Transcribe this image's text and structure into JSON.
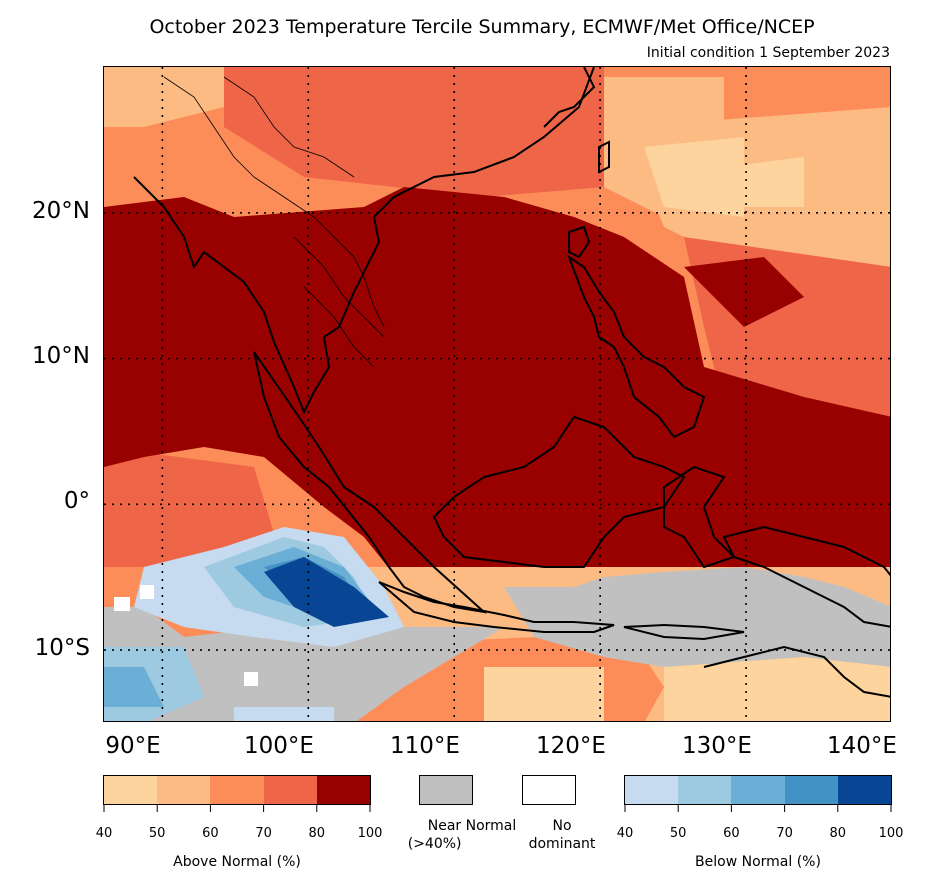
{
  "title": "October 2023 Temperature Tercile Summary, ECMWF/Met Office/NCEP",
  "subtitle": "Initial condition 1 September 2023",
  "map": {
    "lon_labels": [
      "90°E",
      "100°E",
      "110°E",
      "120°E",
      "130°E",
      "140°E"
    ],
    "lat_labels": [
      "20°N",
      "10°N",
      "0°",
      "10°S"
    ],
    "lon_range": [
      86,
      140
    ],
    "lat_range": [
      -15,
      30
    ],
    "gridlines": "dotted",
    "colors": {
      "above_40": "#fdd49e",
      "above_50": "#fdbb84",
      "above_60": "#fc8d59",
      "above_70": "#ef6548",
      "above_80": "#990000",
      "near_normal": "#c0c0c0",
      "no_dominant": "#ffffff",
      "below_40": "#c6dbef",
      "below_50": "#9ecae1",
      "below_60": "#6baed6",
      "below_70": "#4292c6",
      "below_80": "#084594",
      "coastline": "#000000"
    }
  },
  "legend": {
    "above": {
      "title": "Above Normal (%)",
      "ticks": [
        "40",
        "50",
        "60",
        "70",
        "80",
        "100"
      ],
      "colors": [
        "#fdd49e",
        "#fdbb84",
        "#fc8d59",
        "#ef6548",
        "#990000"
      ]
    },
    "near_normal": {
      "label_line1": "Near Normal",
      "label_line2": "(>40%)",
      "color": "#c0c0c0"
    },
    "no_dominant": {
      "label_line1": "No",
      "label_line2": "dominant",
      "color": "#ffffff"
    },
    "below": {
      "title": "Below Normal (%)",
      "ticks": [
        "40",
        "50",
        "60",
        "70",
        "80",
        "100"
      ],
      "colors": [
        "#c6dbef",
        "#9ecae1",
        "#6baed6",
        "#4292c6",
        "#084594"
      ]
    }
  }
}
